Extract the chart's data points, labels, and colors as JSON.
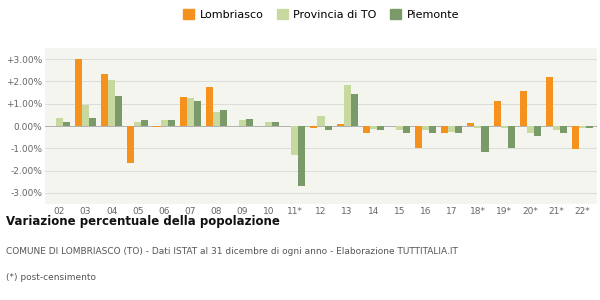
{
  "categories": [
    "02",
    "03",
    "04",
    "05",
    "06",
    "07",
    "08",
    "09",
    "10",
    "11*",
    "12",
    "13",
    "14",
    "15",
    "16",
    "17",
    "18*",
    "19*",
    "20*",
    "21*",
    "22*"
  ],
  "lombriasco": [
    -0.02,
    3.0,
    2.35,
    -1.65,
    -0.03,
    1.3,
    1.75,
    -0.02,
    -0.02,
    0.0,
    -0.1,
    0.08,
    -0.3,
    0.0,
    -1.0,
    -0.3,
    0.15,
    1.1,
    1.55,
    2.2,
    -1.05
  ],
  "provincia_to": [
    0.35,
    0.95,
    2.05,
    0.2,
    0.25,
    1.25,
    0.65,
    0.25,
    0.2,
    -1.3,
    0.45,
    1.85,
    -0.15,
    -0.2,
    -0.2,
    -0.25,
    -0.07,
    -0.07,
    -0.3,
    -0.2,
    -0.07
  ],
  "piemonte": [
    0.2,
    0.35,
    1.35,
    0.25,
    0.25,
    1.1,
    0.7,
    0.3,
    0.2,
    -2.7,
    -0.2,
    1.45,
    -0.2,
    -0.3,
    -0.3,
    -0.3,
    -1.15,
    -1.0,
    -0.45,
    -0.3,
    -0.1
  ],
  "color_lombriasco": "#f5921e",
  "color_provincia": "#c8d9a0",
  "color_piemonte": "#7a9a6a",
  "bg_color": "#f5f5ef",
  "grid_color": "#d8d8d8",
  "title_main": "Variazione percentuale della popolazione",
  "title_sub1": "COMUNE DI LOMBRIASCO (TO) - Dati ISTAT al 31 dicembre di ogni anno - Elaborazione TUTTITALIA.IT",
  "title_sub2": "(*) post-censimento",
  "ylim": [
    -3.5,
    3.5
  ],
  "yticks": [
    -3.0,
    -2.0,
    -1.0,
    0.0,
    1.0,
    2.0,
    3.0
  ],
  "ytick_labels": [
    "-3.00%",
    "-2.00%",
    "-1.00%",
    "0.00%",
    "+1.00%",
    "+2.00%",
    "+3.00%"
  ]
}
